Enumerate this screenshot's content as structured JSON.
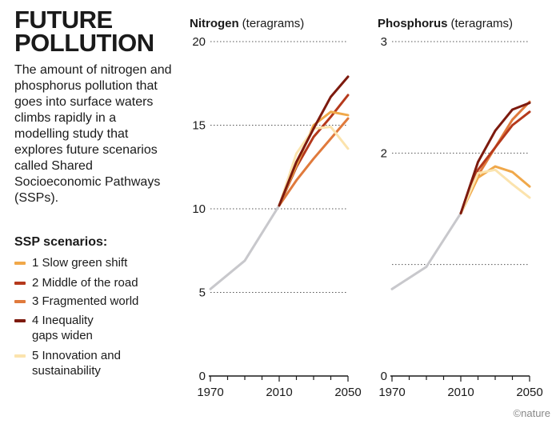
{
  "header": {
    "title": "FUTURE\nPOLLUTION",
    "description": "The amount of nitrogen and phosphorus pollution that goes into surface waters climbs rapidly in a modelling study that explores future scenarios called Shared Socioeconomic Pathways (SSPs)."
  },
  "legend": {
    "title": "SSP scenarios:",
    "items": [
      {
        "lines": [
          "1 Slow green shift"
        ],
        "color": "#f0a84a"
      },
      {
        "lines": [
          "2 Middle of the road"
        ],
        "color": "#b5391c"
      },
      {
        "lines": [
          "3 Fragmented world"
        ],
        "color": "#e07a3c"
      },
      {
        "lines": [
          "4 Inequality",
          "gaps widen"
        ],
        "color": "#7d1a0e"
      },
      {
        "lines": [
          "5 Innovation and",
          "sustainability"
        ],
        "color": "#fbe3ad"
      }
    ]
  },
  "credit": "©nature",
  "colors": {
    "historical": "#c8c8cc",
    "gridline": "#555555",
    "axis": "#1a1a1a"
  },
  "chart_data": [
    {
      "type": "line",
      "title_bold": "Nitrogen",
      "title_unit": "(teragrams)",
      "xlim": [
        1970,
        2050
      ],
      "ylim": [
        0,
        20
      ],
      "yticks": [
        0,
        5,
        10,
        15,
        20
      ],
      "xticks": [
        1970,
        2010,
        2050
      ],
      "grid": true,
      "historical": {
        "x": [
          1970,
          1990,
          2010
        ],
        "y": [
          5.2,
          6.9,
          10.2
        ]
      },
      "series": [
        {
          "name": "1 Slow green shift",
          "color": "#f0a84a",
          "x": [
            2010,
            2020,
            2030,
            2040,
            2050
          ],
          "y": [
            10.2,
            12.6,
            15.0,
            15.8,
            15.6
          ]
        },
        {
          "name": "2 Middle of the road",
          "color": "#b5391c",
          "x": [
            2010,
            2020,
            2030,
            2040,
            2050
          ],
          "y": [
            10.2,
            12.5,
            14.3,
            15.5,
            16.8
          ]
        },
        {
          "name": "3 Fragmented world",
          "color": "#e07a3c",
          "x": [
            2010,
            2020,
            2030,
            2040,
            2050
          ],
          "y": [
            10.2,
            11.7,
            13.0,
            14.2,
            15.4
          ]
        },
        {
          "name": "4 Inequality gaps widen",
          "color": "#7d1a0e",
          "x": [
            2010,
            2020,
            2030,
            2040,
            2050
          ],
          "y": [
            10.2,
            12.8,
            14.8,
            16.7,
            17.9
          ]
        },
        {
          "name": "5 Innovation and sustainability",
          "color": "#fbe3ad",
          "x": [
            2010,
            2020,
            2030,
            2040,
            2050
          ],
          "y": [
            10.2,
            13.3,
            14.8,
            14.9,
            13.6
          ]
        }
      ]
    },
    {
      "type": "line",
      "title_bold": "Phosphorus",
      "title_unit": "(teragrams)",
      "xlim": [
        1970,
        2050
      ],
      "ylim": [
        0,
        3
      ],
      "yticks": [
        0,
        2,
        3
      ],
      "gridlines": [
        1,
        2,
        3
      ],
      "xticks": [
        1970,
        2010,
        2050
      ],
      "grid": true,
      "historical": {
        "x": [
          1970,
          1990,
          2010
        ],
        "y": [
          0.78,
          0.98,
          1.46
        ]
      },
      "series": [
        {
          "name": "1 Slow green shift",
          "color": "#f0a84a",
          "x": [
            2010,
            2020,
            2030,
            2040,
            2050
          ],
          "y": [
            1.46,
            1.78,
            1.88,
            1.83,
            1.7
          ]
        },
        {
          "name": "2 Middle of the road",
          "color": "#b5391c",
          "x": [
            2010,
            2020,
            2030,
            2040,
            2050
          ],
          "y": [
            1.46,
            1.85,
            2.05,
            2.25,
            2.37
          ]
        },
        {
          "name": "3 Fragmented world",
          "color": "#e07a3c",
          "x": [
            2010,
            2020,
            2030,
            2040,
            2050
          ],
          "y": [
            1.46,
            1.8,
            2.05,
            2.3,
            2.46
          ]
        },
        {
          "name": "4 Inequality gaps widen",
          "color": "#7d1a0e",
          "x": [
            2010,
            2020,
            2030,
            2040,
            2050
          ],
          "y": [
            1.46,
            1.92,
            2.2,
            2.39,
            2.45
          ]
        },
        {
          "name": "5 Innovation and sustainability",
          "color": "#fbe3ad",
          "x": [
            2010,
            2020,
            2030,
            2040,
            2050
          ],
          "y": [
            1.46,
            1.82,
            1.85,
            1.72,
            1.6
          ]
        }
      ]
    }
  ]
}
